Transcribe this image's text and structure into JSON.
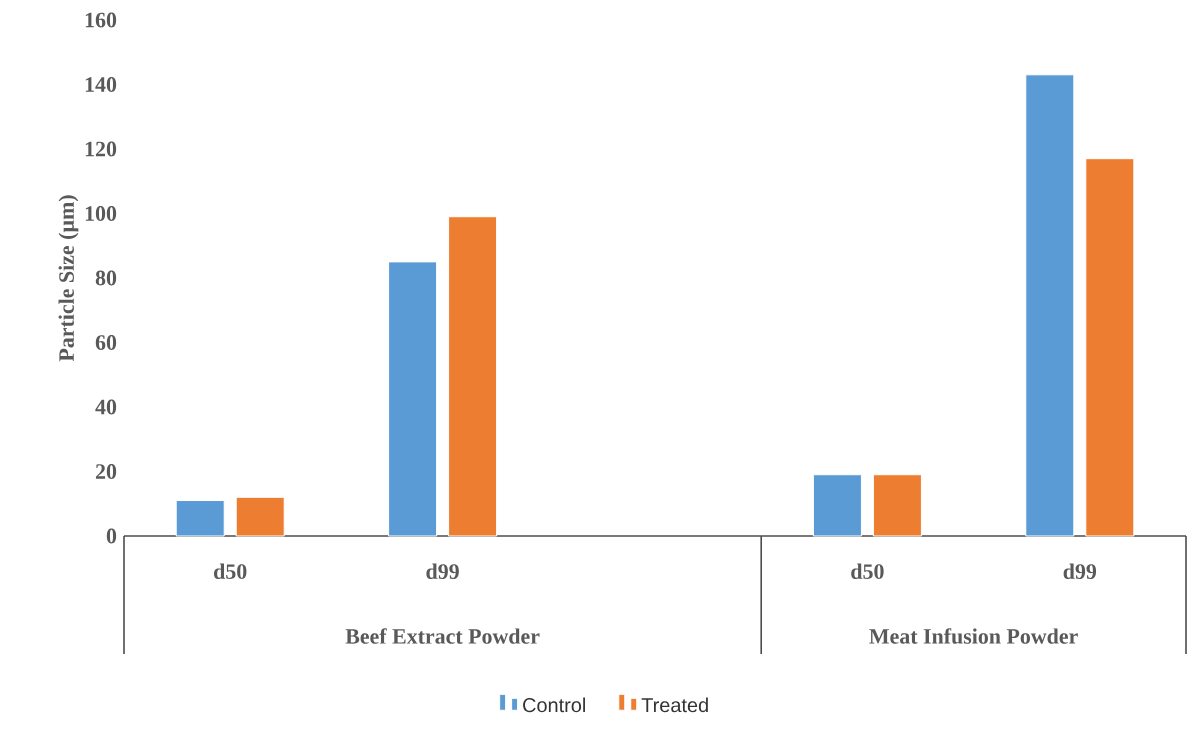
{
  "chart_data": {
    "type": "bar",
    "ylabel": "Particle Size (µm)",
    "categories": [
      "d50",
      "d99",
      null,
      "d50",
      "d99"
    ],
    "series": [
      {
        "name": "Control",
        "color": "#5b9bd5",
        "values": [
          11,
          85,
          null,
          19,
          143
        ]
      },
      {
        "name": "Treated",
        "color": "#ed7d31",
        "values": [
          12,
          99,
          null,
          19,
          117
        ]
      }
    ],
    "ylim": [
      0,
      160
    ],
    "yticks": [
      0,
      20,
      40,
      60,
      80,
      100,
      120,
      140,
      160
    ],
    "annotations": [
      "Beef Extract Powder",
      "Meat Infusion Powder"
    ],
    "legend": "bottom"
  }
}
